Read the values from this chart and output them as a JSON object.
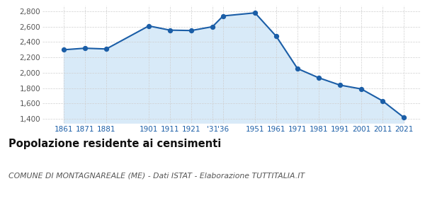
{
  "years": [
    1861,
    1871,
    1881,
    1901,
    1911,
    1921,
    1931,
    1936,
    1951,
    1961,
    1971,
    1981,
    1991,
    2001,
    2011,
    2021
  ],
  "population": [
    2300,
    2320,
    2310,
    2610,
    2555,
    2550,
    2600,
    2740,
    2780,
    2475,
    2055,
    1935,
    1840,
    1790,
    1635,
    1420
  ],
  "x_tick_positions": [
    1861,
    1871,
    1881,
    1901,
    1911,
    1921,
    1931,
    1936,
    1951,
    1961,
    1971,
    1981,
    1991,
    2001,
    2011,
    2021
  ],
  "x_tick_labels": [
    "1861",
    "1871",
    "1881",
    "1901",
    "1911",
    "1921",
    "'31",
    "'36",
    "1951",
    "1961",
    "1971",
    "1981",
    "1991",
    "2001",
    "2011",
    "2021"
  ],
  "yticks": [
    1400,
    1600,
    1800,
    2000,
    2200,
    2400,
    2600,
    2800
  ],
  "ylim": [
    1350,
    2870
  ],
  "xlim": [
    1851,
    2029
  ],
  "line_color": "#1b5ea7",
  "fill_color": "#d8eaf8",
  "marker_color": "#1b5ea7",
  "grid_color": "#d0d0d0",
  "bg_color": "#ffffff",
  "title": "Popolazione residente ai censimenti",
  "subtitle": "COMUNE DI MONTAGNAREALE (ME) - Dati ISTAT - Elaborazione TUTTITALIA.IT",
  "title_fontsize": 10.5,
  "subtitle_fontsize": 7.8,
  "tick_fontsize": 7.5,
  "ytick_color": "#555555",
  "xtick_color": "#1b5ea7"
}
